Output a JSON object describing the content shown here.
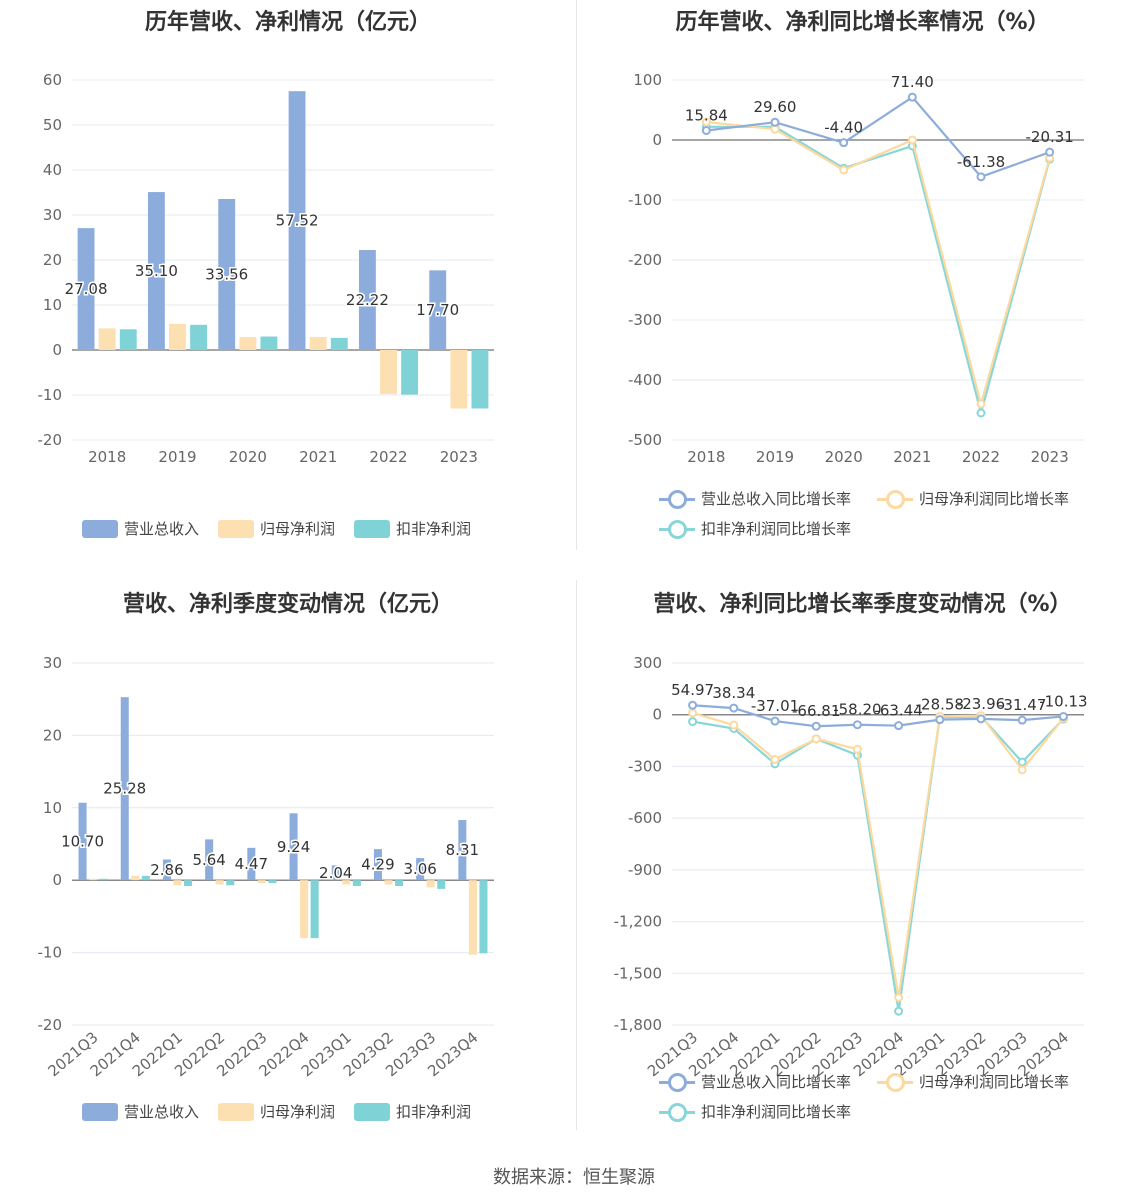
{
  "colors": {
    "revenue": "#8caddc",
    "parent_profit": "#fde0b2",
    "deducted_profit": "#7fd3d6",
    "revenue_line": "#8caddc",
    "parent_line": "#fcd99e",
    "deducted_line": "#88d6d8"
  },
  "source": "数据来源：恒生聚源",
  "chart_data": [
    {
      "type": "bar",
      "title": "历年营收、净利情况（亿元）",
      "categories": [
        "2018",
        "2019",
        "2020",
        "2021",
        "2022",
        "2023"
      ],
      "ylim": [
        -20,
        60
      ],
      "yticks": [
        60,
        50,
        40,
        30,
        20,
        10,
        0,
        -10,
        -20
      ],
      "grid": true,
      "legend": "bottom",
      "series": [
        {
          "name": "营业总收入",
          "values": [
            27.08,
            35.1,
            33.56,
            57.52,
            22.22,
            17.7
          ],
          "labels": [
            "27.08",
            "35.10",
            "33.56",
            "57.52",
            "22.22",
            "17.70"
          ]
        },
        {
          "name": "归母净利润",
          "values": [
            4.8,
            5.8,
            2.9,
            2.9,
            -9.8,
            -13.0
          ]
        },
        {
          "name": "扣非净利润",
          "values": [
            4.6,
            5.6,
            3.0,
            2.7,
            -9.9,
            -13.0
          ]
        }
      ]
    },
    {
      "type": "line",
      "title": "历年营收、净利同比增长率情况（%）",
      "categories": [
        "2018",
        "2019",
        "2020",
        "2021",
        "2022",
        "2023"
      ],
      "ylim": [
        -500,
        100
      ],
      "yticks": [
        100,
        0,
        -100,
        -200,
        -300,
        -400,
        -500
      ],
      "grid": true,
      "legend": "bottom",
      "series": [
        {
          "name": "营业总收入同比增长率",
          "values": [
            15.84,
            29.6,
            -4.4,
            71.4,
            -61.38,
            -20.31
          ],
          "labels": [
            "15.84",
            "29.60",
            "-4.40",
            "71.40",
            "-61.38",
            "-20.31"
          ]
        },
        {
          "name": "归母净利润同比增长率",
          "values": [
            30,
            18,
            -50,
            0,
            -440,
            -30
          ]
        },
        {
          "name": "扣非净利润同比增长率",
          "values": [
            22,
            22,
            -47,
            -10,
            -455,
            -32
          ]
        }
      ]
    },
    {
      "type": "bar",
      "title": "营收、净利季度变动情况（亿元）",
      "categories": [
        "2021Q3",
        "2021Q4",
        "2022Q1",
        "2022Q2",
        "2022Q3",
        "2022Q4",
        "2023Q1",
        "2023Q2",
        "2023Q3",
        "2023Q4"
      ],
      "ylim": [
        -20,
        30
      ],
      "yticks": [
        30,
        20,
        10,
        0,
        -10,
        -20
      ],
      "grid": true,
      "legend": "bottom",
      "series": [
        {
          "name": "营业总收入",
          "values": [
            10.7,
            25.28,
            2.86,
            5.64,
            4.47,
            9.24,
            2.04,
            4.29,
            3.06,
            8.31
          ],
          "labels": [
            "10.70",
            "25.28",
            "2.86",
            "5.64",
            "4.47",
            "9.24",
            "2.04",
            "4.29",
            "3.06",
            "8.31"
          ]
        },
        {
          "name": "归母净利润",
          "values": [
            0.2,
            0.6,
            -0.7,
            -0.6,
            -0.4,
            -8.0,
            -0.6,
            -0.6,
            -1.0,
            -10.3
          ]
        },
        {
          "name": "扣非净利润",
          "values": [
            0.2,
            0.6,
            -0.8,
            -0.7,
            -0.4,
            -8.0,
            -0.8,
            -0.8,
            -1.2,
            -10.1
          ]
        }
      ]
    },
    {
      "type": "line",
      "title": "营收、净利同比增长率季度变动情况（%）",
      "categories": [
        "2021Q3",
        "2021Q4",
        "2022Q1",
        "2022Q2",
        "2022Q3",
        "2022Q4",
        "2023Q1",
        "2023Q2",
        "2023Q3",
        "2023Q4"
      ],
      "ylim": [
        -1800,
        300
      ],
      "yticks": [
        300,
        0,
        -300,
        -600,
        -900,
        -1200,
        -1500,
        -1800
      ],
      "ytick_labels": [
        "300",
        "0",
        "-300",
        "-600",
        "-900",
        "-1,200",
        "-1,500",
        "-1,800"
      ],
      "grid": true,
      "legend": "bottom",
      "series": [
        {
          "name": "营业总收入同比增长率",
          "values": [
            54.97,
            38.34,
            -37.01,
            -66.81,
            -58.2,
            -63.44,
            -28.58,
            -23.96,
            -31.47,
            -10.13
          ],
          "labels": [
            "54.97",
            "38.34",
            "-37.01",
            "-66.81",
            "-58.20",
            "-63.44",
            "-28.58",
            "-23.96",
            "-31.47",
            "-10.13"
          ]
        },
        {
          "name": "归母净利润同比增长率",
          "values": [
            10,
            -60,
            -260,
            -140,
            -200,
            -1640,
            -10,
            -5,
            -320,
            -20
          ]
        },
        {
          "name": "扣非净利润同比增长率",
          "values": [
            -40,
            -80,
            -285,
            -140,
            -235,
            -1720,
            -15,
            -10,
            -275,
            -25
          ]
        }
      ]
    }
  ]
}
